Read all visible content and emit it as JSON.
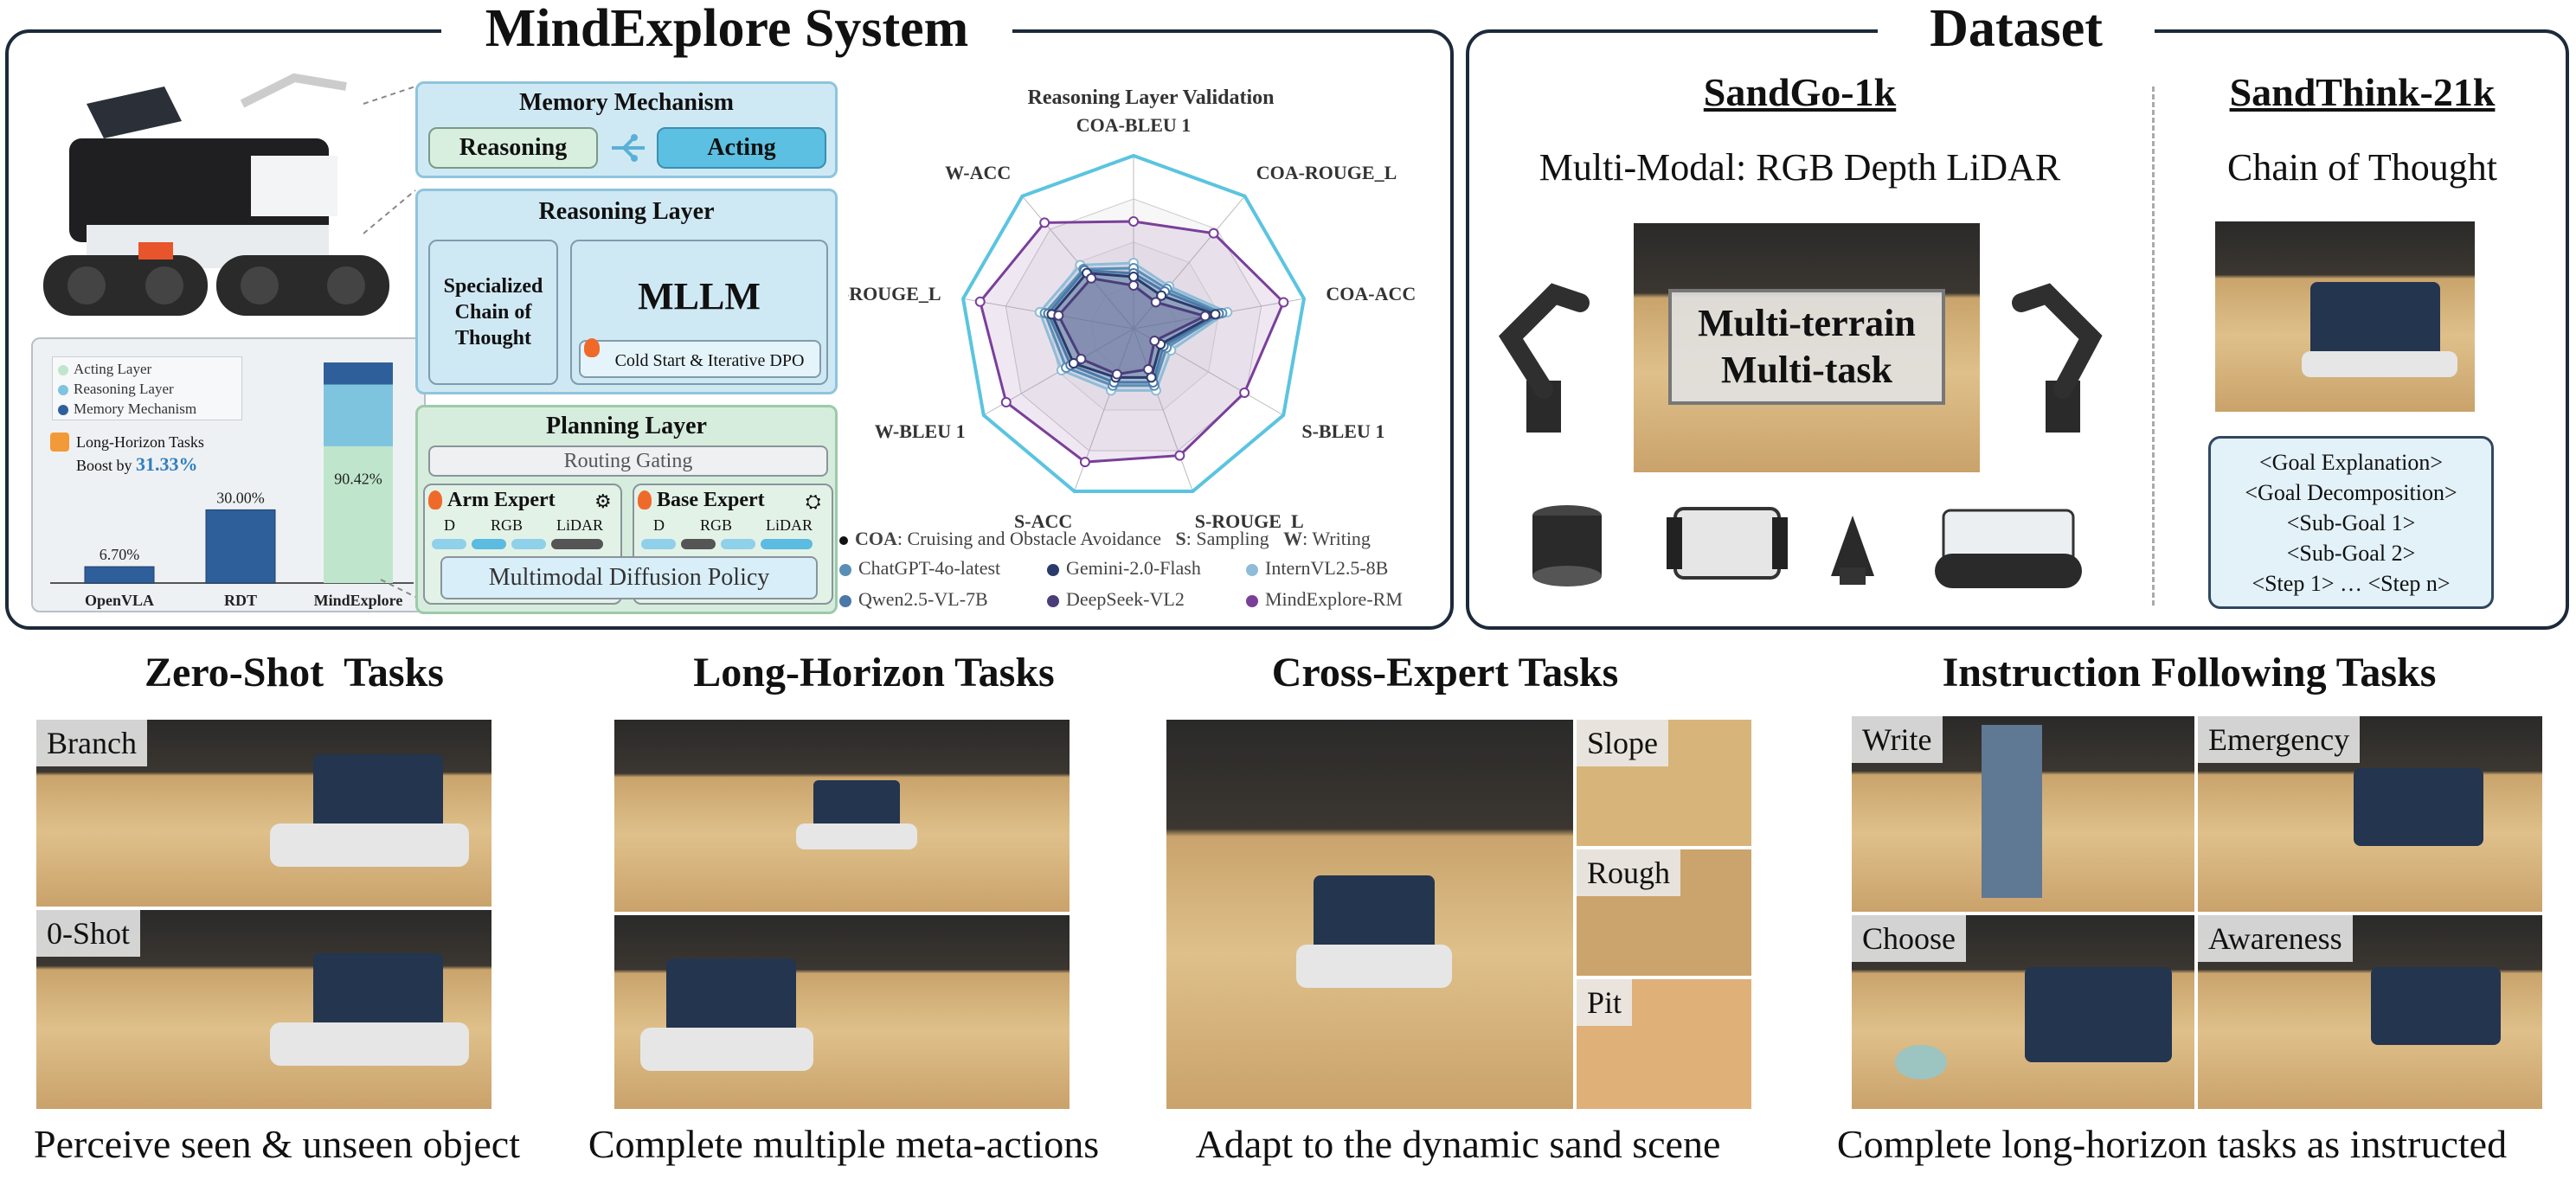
{
  "system": {
    "title": "MindExplore System",
    "memory": {
      "title": "Memory Mechanism",
      "reasoning": "Reasoning",
      "acting": "Acting"
    },
    "reasoning_layer": {
      "title": "Reasoning Layer",
      "left_text": "Specialized Chain of Thought",
      "mllm": "MLLM",
      "cold_start": "Cold Start & Iterative DPO"
    },
    "planning_layer": {
      "title": "Planning Layer",
      "routing": "Routing Gating",
      "arm_expert": "Arm Expert",
      "base_expert": "Base Expert",
      "tokens": [
        "D",
        "RGB",
        "LiDAR"
      ],
      "policy": "Multimodal Diffusion Policy"
    },
    "bar_legend": [
      "Acting Layer",
      "Reasoning Layer",
      "Memory Mechanism"
    ],
    "boost_text_1": "Long-Horizon Tasks",
    "boost_text_2": "Boost by",
    "boost_value": "31.33%"
  },
  "chart_data": [
    {
      "type": "bar",
      "categories": [
        "OpenVLA",
        "RDT",
        "MindExplore"
      ],
      "values": [
        6.7,
        30.0,
        90.42
      ],
      "value_labels": [
        "6.70%",
        "30.00%",
        "90.42%"
      ],
      "ylim": [
        0,
        100
      ]
    },
    {
      "type": "radar",
      "title": "Reasoning Layer Validation",
      "axes": [
        "COA-BLEU 1",
        "COA-ROUGE_L",
        "COA-ACC",
        "S-BLEU 1",
        "S-ROUGE_L",
        "S-ACC",
        "W-BLEU 1",
        "W-ROUGE_L",
        "W-ACC"
      ],
      "series": [
        {
          "name": "ChatGPT-4o-latest",
          "color": "#5a8fb5",
          "values": [
            0.35,
            0.3,
            0.52,
            0.22,
            0.35,
            0.35,
            0.45,
            0.52,
            0.45
          ]
        },
        {
          "name": "Gemini-2.0-Flash",
          "color": "#2a3a6a",
          "values": [
            0.3,
            0.25,
            0.48,
            0.18,
            0.3,
            0.3,
            0.4,
            0.48,
            0.42
          ]
        },
        {
          "name": "InternVL2.5-8B",
          "color": "#8fbcd8",
          "values": [
            0.38,
            0.32,
            0.55,
            0.25,
            0.38,
            0.38,
            0.48,
            0.55,
            0.48
          ]
        },
        {
          "name": "Qwen2.5-VL-7B",
          "color": "#4a78a8",
          "values": [
            0.32,
            0.28,
            0.5,
            0.2,
            0.33,
            0.33,
            0.42,
            0.5,
            0.44
          ]
        },
        {
          "name": "DeepSeek-VL2",
          "color": "#4b3d7a",
          "values": [
            0.25,
            0.2,
            0.42,
            0.14,
            0.25,
            0.28,
            0.35,
            0.44,
            0.38
          ]
        },
        {
          "name": "MindExplore-RM",
          "color": "#7a3f9a",
          "values": [
            0.62,
            0.72,
            0.88,
            0.74,
            0.78,
            0.82,
            0.85,
            0.9,
            0.8
          ]
        },
        {
          "name": "",
          "color": "#5bc4e0",
          "values": [
            1.0,
            1.0,
            1.0,
            1.0,
            1.0,
            1.0,
            1.0,
            1.0,
            1.0
          ]
        }
      ],
      "legend_note": {
        "coa_key": "COA",
        "coa_text": ": Cruising and Obstacle Avoidance",
        "s_key": "S",
        "s_text": ": Sampling",
        "w_key": "W",
        "w_text": ": Writing"
      }
    }
  ],
  "dataset": {
    "title": "Dataset",
    "sandgo": {
      "title": "SandGo-1k",
      "subtitle": "Multi-Modal: RGB Depth LiDAR",
      "overlay_line1": "Multi-terrain",
      "overlay_line2": "Multi-task"
    },
    "sandthink": {
      "title": "SandThink-21k",
      "subtitle": "Chain of Thought",
      "steps": [
        "<Goal Explanation>",
        "<Goal Decomposition>",
        "<Sub-Goal 1>",
        "<Sub-Goal 2>",
        "<Step 1> … <Step n>"
      ]
    }
  },
  "tasks": [
    {
      "title": "Zero-Shot  Tasks",
      "caption": "Perceive seen & unseen object",
      "tags": [
        "Branch",
        "0-Shot"
      ]
    },
    {
      "title": "Long-Horizon Tasks",
      "caption": "Complete multiple meta-actions",
      "tags": []
    },
    {
      "title": "Cross-Expert Tasks",
      "caption": "Adapt to the dynamic sand scene",
      "tags": [
        "Slope",
        "Rough",
        "Pit"
      ]
    },
    {
      "title": "Instruction Following Tasks",
      "caption": "Complete long-horizon tasks as instructed",
      "tags": [
        "Write",
        "Emergency",
        "Choose",
        "Awareness"
      ]
    }
  ]
}
